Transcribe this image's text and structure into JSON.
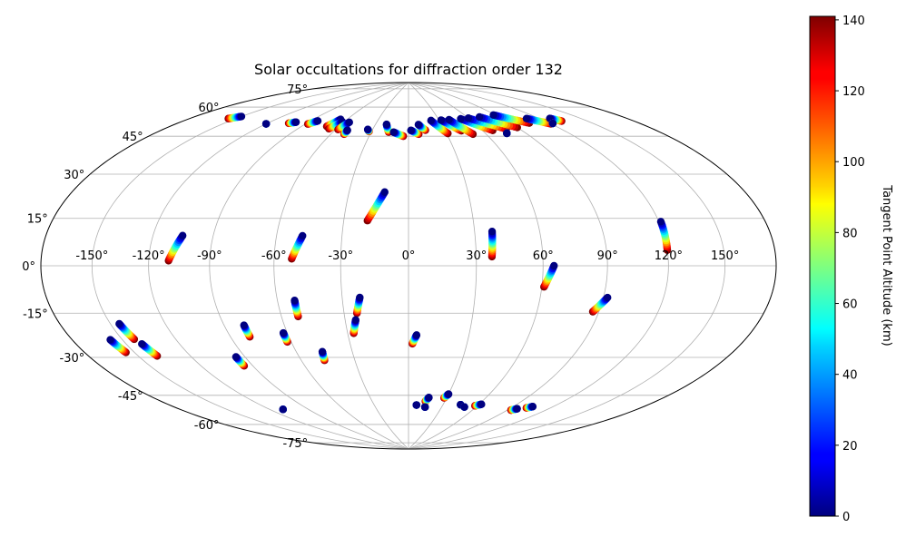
{
  "chart_data": {
    "type": "scatter",
    "projection": "aitoff-hammer",
    "title": "Solar occultations for diffraction order 132",
    "longitude_ticks": [
      "-150°",
      "-120°",
      "-90°",
      "-60°",
      "-30°",
      "0°",
      "30°",
      "60°",
      "90°",
      "120°",
      "150°"
    ],
    "latitude_ticks": [
      "75°",
      "60°",
      "45°",
      "30°",
      "15°",
      "0°",
      "-15°",
      "-30°",
      "-45°",
      "-60°",
      "-75°"
    ],
    "colorbar": {
      "label": "Tangent Point Altitude (km)",
      "min": 0,
      "max": 141,
      "ticks": [
        "0",
        "20",
        "40",
        "60",
        "80",
        "100",
        "120",
        "140"
      ],
      "colormap": "jet"
    },
    "track_columns": [
      "start_longitude_deg",
      "start_latitude_deg",
      "end_longitude_deg",
      "end_latitude_deg"
    ],
    "tracks": [
      [
        -110,
        2,
        -105,
        12
      ],
      [
        -52,
        3,
        -48,
        13
      ],
      [
        -19,
        20,
        -12,
        33
      ],
      [
        37,
        4,
        38,
        15
      ],
      [
        120,
        6,
        121,
        17
      ],
      [
        61,
        -9,
        65,
        0
      ],
      [
        87,
        -19,
        92,
        -13
      ],
      [
        -52,
        -22,
        -52,
        -15
      ],
      [
        -24,
        -21,
        -22,
        -14
      ],
      [
        -27,
        -30,
        -25,
        -24
      ],
      [
        2,
        -35,
        4,
        -31
      ],
      [
        -155,
        -31,
        -157,
        -26
      ],
      [
        -143,
        -27,
        -145,
        -21
      ],
      [
        -139,
        -34,
        -141,
        -29
      ],
      [
        -80,
        -30,
        -80,
        -25
      ],
      [
        -62,
        -33,
        -62,
        -29
      ],
      [
        -47,
        -42,
        -46,
        -38
      ],
      [
        -95,
        -42,
        -95,
        -38
      ],
      [
        -110,
        -62,
        -110,
        -62
      ],
      [
        -120,
        60,
        -120,
        60
      ],
      [
        7,
        -65,
        7,
        -65
      ],
      [
        14,
        -63,
        16,
        -61
      ],
      [
        15,
        -66,
        15,
        -66
      ],
      [
        28,
        -61,
        30,
        -59
      ],
      [
        45,
        -64,
        45,
        -64
      ],
      [
        50,
        -65,
        50,
        -65
      ],
      [
        58,
        -64,
        62,
        -63
      ],
      [
        93,
        -64,
        96,
        -63
      ],
      [
        102,
        -62,
        105,
        -61
      ],
      [
        -155,
        58,
        -150,
        60
      ],
      [
        -104,
        62,
        -100,
        63
      ],
      [
        -88,
        63,
        -84,
        65
      ],
      [
        -70,
        63,
        -66,
        67
      ],
      [
        -66,
        62,
        -62,
        66
      ],
      [
        -58,
        62,
        -55,
        66
      ],
      [
        -50,
        60,
        -50,
        62
      ],
      [
        -32,
        62,
        -34,
        63
      ],
      [
        -16,
        62,
        -20,
        66
      ],
      [
        -4,
        60,
        -12,
        62
      ],
      [
        8,
        61,
        2,
        63
      ],
      [
        14,
        63,
        9,
        66
      ],
      [
        31,
        61,
        22,
        68
      ],
      [
        43,
        62,
        32,
        68
      ],
      [
        50,
        60,
        40,
        68
      ],
      [
        68,
        61,
        52,
        68
      ],
      [
        80,
        61,
        60,
        68
      ],
      [
        90,
        61,
        72,
        68
      ],
      [
        105,
        62,
        88,
        68
      ],
      [
        120,
        60,
        110,
        64
      ],
      [
        132,
        60,
        128,
        62
      ],
      [
        76,
        59,
        76,
        59
      ],
      [
        122,
        60,
        122,
        60
      ]
    ]
  }
}
